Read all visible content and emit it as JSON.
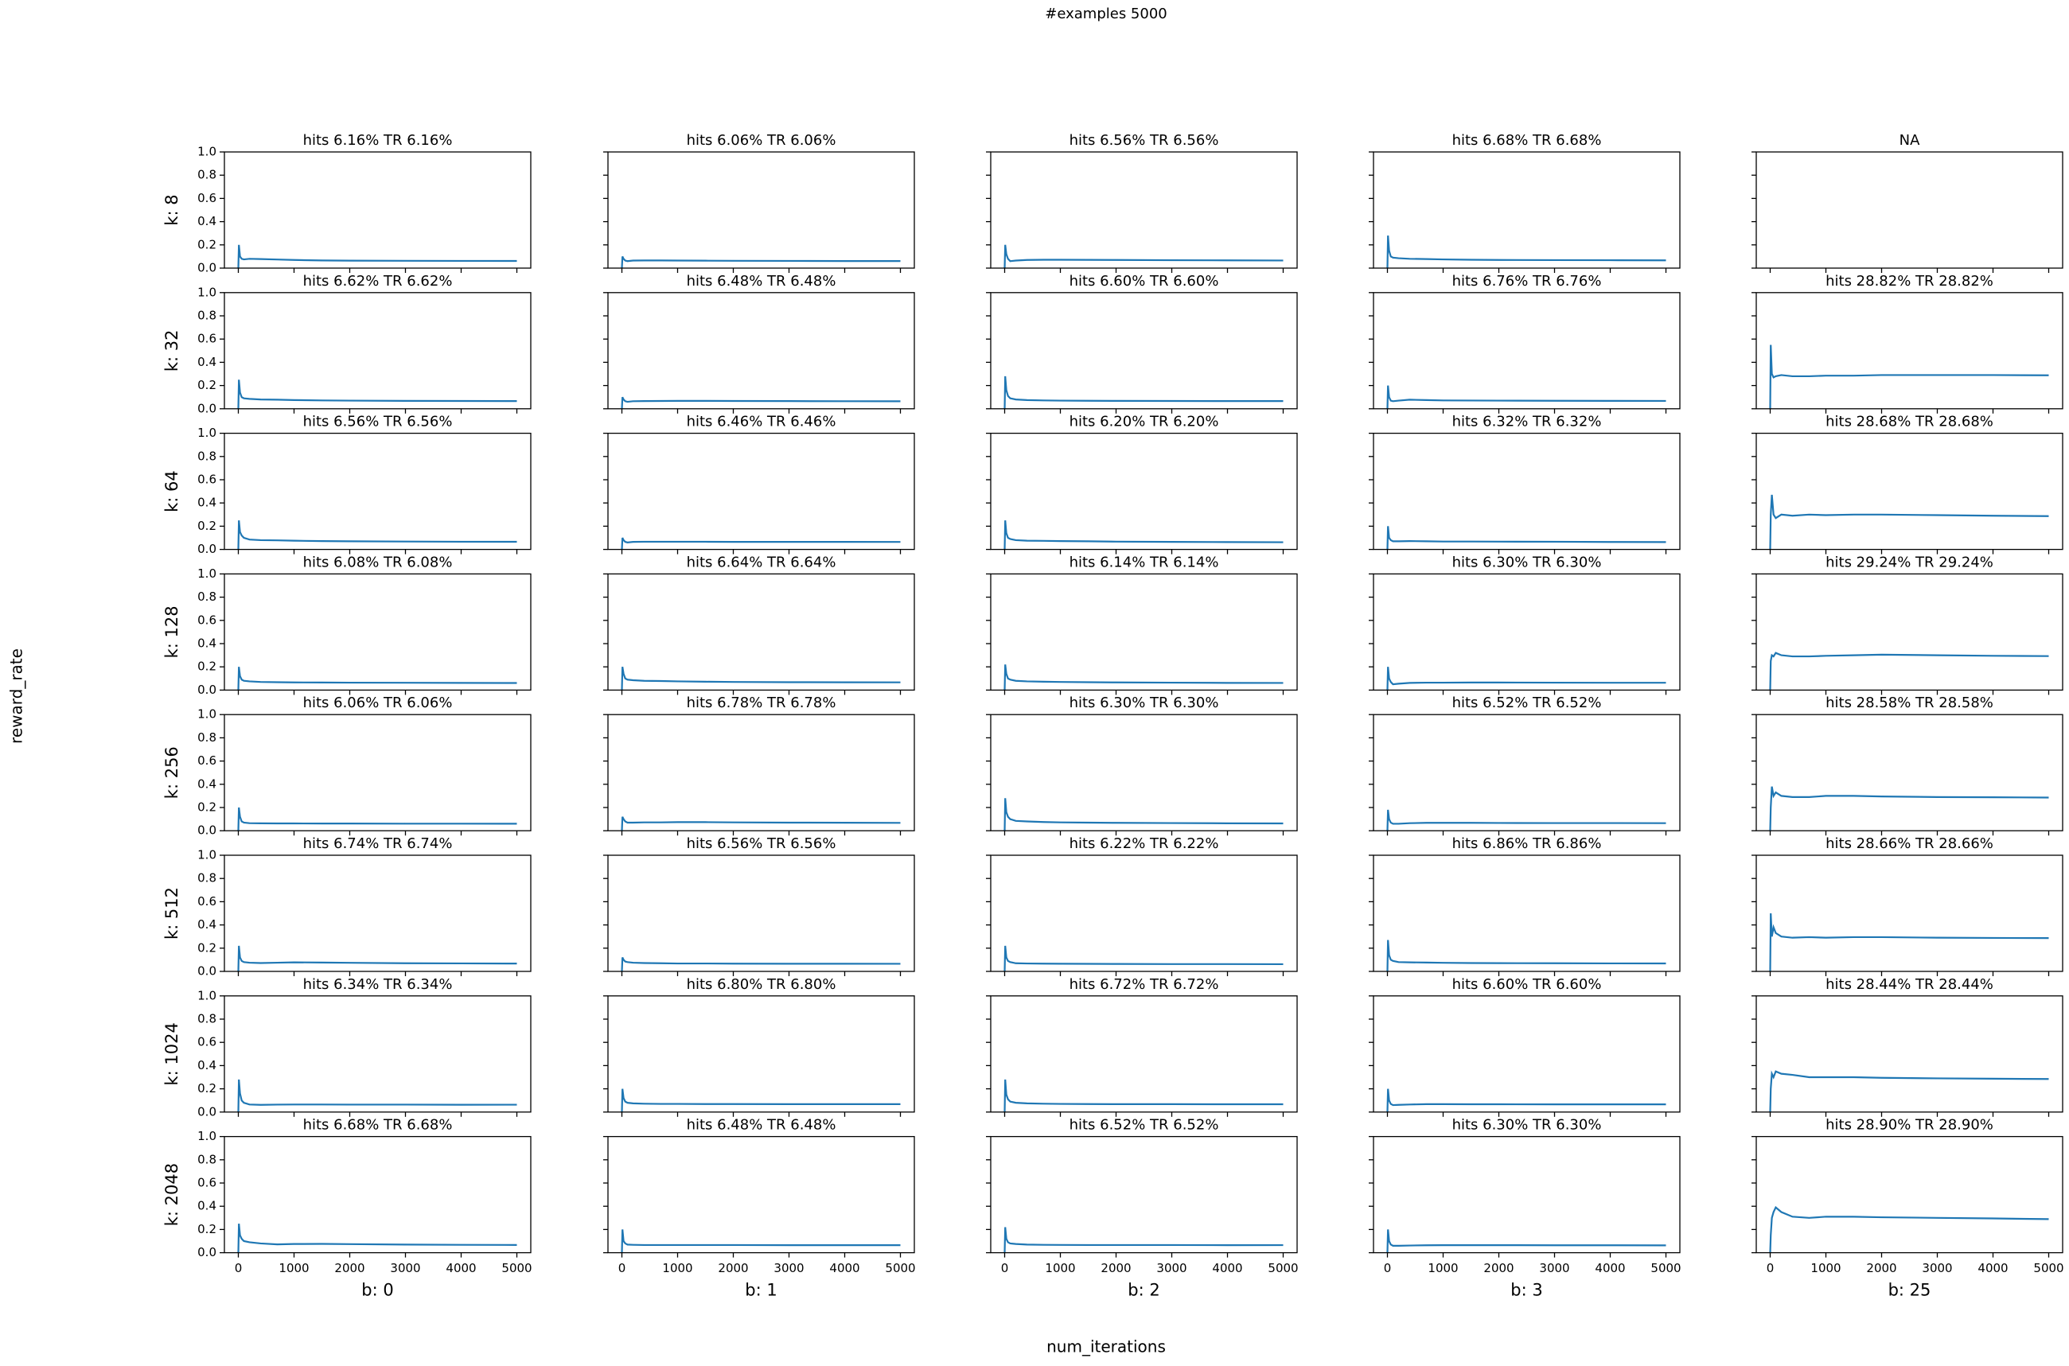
{
  "title": "#examples 5000",
  "ylabel": "reward_rate",
  "xlabel": "num_iterations",
  "color": "#1f77b4",
  "xlim": [
    -250,
    5250
  ],
  "xticks": [
    0,
    1000,
    2000,
    3000,
    4000,
    5000
  ],
  "ylim": [
    0,
    1
  ],
  "yticks": [
    {
      "value": 0,
      "label": "0.0"
    },
    {
      "value": 0.2,
      "label": "0.2"
    },
    {
      "value": 0.4,
      "label": "0.4"
    },
    {
      "value": 0.6,
      "label": "0.6"
    },
    {
      "value": 0.8,
      "label": "0.8"
    },
    {
      "value": 1,
      "label": "1.0"
    }
  ],
  "x": [
    0,
    10,
    30,
    60,
    100,
    200,
    400,
    700,
    1000,
    1500,
    2000,
    3000,
    4000,
    5000
  ],
  "chart_data": [
    {
      "type": "line",
      "title": "hits 6.16% TR 6.16%",
      "ylabel": "k: 8",
      "values": [
        0,
        0.2,
        0.1,
        0.08,
        0.075,
        0.08,
        0.078,
        0.074,
        0.07,
        0.066,
        0.064,
        0.063,
        0.062,
        0.0616
      ]
    },
    {
      "type": "line",
      "title": "hits 6.06% TR 6.06%",
      "values": [
        0,
        0.1,
        0.08,
        0.065,
        0.06,
        0.065,
        0.066,
        0.066,
        0.065,
        0.064,
        0.063,
        0.062,
        0.061,
        0.0606
      ]
    },
    {
      "type": "line",
      "title": "hits 6.56% TR 6.56%",
      "values": [
        0,
        0.2,
        0.12,
        0.08,
        0.06,
        0.065,
        0.07,
        0.072,
        0.072,
        0.071,
        0.07,
        0.068,
        0.067,
        0.0656
      ]
    },
    {
      "type": "line",
      "title": "hits 6.68% TR 6.68%",
      "values": [
        0,
        0.28,
        0.15,
        0.1,
        0.09,
        0.085,
        0.08,
        0.078,
        0.075,
        0.072,
        0.07,
        0.069,
        0.068,
        0.0668
      ]
    },
    {
      "type": "line",
      "title": "NA"
    },
    {
      "type": "line",
      "title": "hits 6.62% TR 6.62%",
      "ylabel": "k: 32",
      "values": [
        0,
        0.25,
        0.14,
        0.1,
        0.09,
        0.085,
        0.08,
        0.078,
        0.075,
        0.072,
        0.07,
        0.068,
        0.067,
        0.0662
      ]
    },
    {
      "type": "line",
      "title": "hits 6.48% TR 6.48%",
      "values": [
        0,
        0.1,
        0.08,
        0.065,
        0.06,
        0.065,
        0.066,
        0.067,
        0.068,
        0.068,
        0.067,
        0.066,
        0.065,
        0.0648
      ]
    },
    {
      "type": "line",
      "title": "hits 6.60% TR 6.60%",
      "values": [
        0,
        0.28,
        0.16,
        0.11,
        0.09,
        0.08,
        0.075,
        0.072,
        0.07,
        0.069,
        0.068,
        0.067,
        0.066,
        0.066
      ]
    },
    {
      "type": "line",
      "title": "hits 6.76% TR 6.76%",
      "values": [
        0,
        0.2,
        0.1,
        0.07,
        0.065,
        0.07,
        0.078,
        0.075,
        0.072,
        0.071,
        0.07,
        0.069,
        0.068,
        0.0676
      ]
    },
    {
      "type": "line",
      "title": "hits 28.82% TR 28.82%",
      "values": [
        0,
        0.55,
        0.3,
        0.27,
        0.28,
        0.29,
        0.28,
        0.28,
        0.285,
        0.285,
        0.29,
        0.29,
        0.29,
        0.2882
      ]
    },
    {
      "type": "line",
      "title": "hits 6.56% TR 6.56%",
      "ylabel": "k: 64",
      "values": [
        0,
        0.25,
        0.15,
        0.12,
        0.1,
        0.085,
        0.08,
        0.078,
        0.075,
        0.072,
        0.07,
        0.068,
        0.066,
        0.0656
      ]
    },
    {
      "type": "line",
      "title": "hits 6.46% TR 6.46%",
      "values": [
        0,
        0.1,
        0.08,
        0.065,
        0.06,
        0.065,
        0.066,
        0.066,
        0.066,
        0.066,
        0.065,
        0.065,
        0.065,
        0.0646
      ]
    },
    {
      "type": "line",
      "title": "hits 6.20% TR 6.20%",
      "values": [
        0,
        0.25,
        0.14,
        0.1,
        0.09,
        0.08,
        0.075,
        0.074,
        0.072,
        0.07,
        0.067,
        0.065,
        0.063,
        0.062
      ]
    },
    {
      "type": "line",
      "title": "hits 6.32% TR 6.32%",
      "values": [
        0,
        0.2,
        0.1,
        0.08,
        0.07,
        0.07,
        0.072,
        0.07,
        0.068,
        0.068,
        0.067,
        0.066,
        0.064,
        0.0632
      ]
    },
    {
      "type": "line",
      "title": "hits 28.68% TR 28.68%",
      "values": [
        0,
        0.3,
        0.47,
        0.3,
        0.27,
        0.3,
        0.29,
        0.3,
        0.295,
        0.3,
        0.3,
        0.295,
        0.29,
        0.2868
      ]
    },
    {
      "type": "line",
      "title": "hits 6.08% TR 6.08%",
      "ylabel": "k: 128",
      "values": [
        0,
        0.2,
        0.12,
        0.09,
        0.08,
        0.075,
        0.07,
        0.068,
        0.066,
        0.065,
        0.064,
        0.063,
        0.062,
        0.0608
      ]
    },
    {
      "type": "line",
      "title": "hits 6.64% TR 6.64%",
      "values": [
        0,
        0.2,
        0.14,
        0.1,
        0.09,
        0.085,
        0.08,
        0.078,
        0.075,
        0.072,
        0.07,
        0.068,
        0.067,
        0.0664
      ]
    },
    {
      "type": "line",
      "title": "hits 6.14% TR 6.14%",
      "values": [
        0,
        0.22,
        0.14,
        0.1,
        0.09,
        0.08,
        0.075,
        0.072,
        0.07,
        0.068,
        0.066,
        0.064,
        0.062,
        0.0614
      ]
    },
    {
      "type": "line",
      "title": "hits 6.30% TR 6.30%",
      "values": [
        0,
        0.2,
        0.1,
        0.07,
        0.05,
        0.055,
        0.062,
        0.064,
        0.064,
        0.065,
        0.065,
        0.064,
        0.063,
        0.063
      ]
    },
    {
      "type": "line",
      "title": "hits 29.24% TR 29.24%",
      "values": [
        0,
        0.25,
        0.3,
        0.29,
        0.32,
        0.3,
        0.29,
        0.29,
        0.295,
        0.3,
        0.305,
        0.3,
        0.295,
        0.2924
      ]
    },
    {
      "type": "line",
      "title": "hits 6.06% TR 6.06%",
      "ylabel": "k: 256",
      "values": [
        0,
        0.2,
        0.12,
        0.08,
        0.07,
        0.065,
        0.064,
        0.063,
        0.063,
        0.062,
        0.062,
        0.061,
        0.061,
        0.0606
      ]
    },
    {
      "type": "line",
      "title": "hits 6.78% TR 6.78%",
      "values": [
        0,
        0.12,
        0.1,
        0.08,
        0.07,
        0.07,
        0.072,
        0.072,
        0.074,
        0.074,
        0.072,
        0.07,
        0.069,
        0.0678
      ]
    },
    {
      "type": "line",
      "title": "hits 6.30% TR 6.30%",
      "values": [
        0,
        0.28,
        0.16,
        0.12,
        0.1,
        0.085,
        0.08,
        0.075,
        0.072,
        0.07,
        0.068,
        0.066,
        0.064,
        0.063
      ]
    },
    {
      "type": "line",
      "title": "hits 6.52% TR 6.52%",
      "values": [
        0,
        0.18,
        0.1,
        0.07,
        0.06,
        0.06,
        0.065,
        0.068,
        0.068,
        0.068,
        0.067,
        0.066,
        0.066,
        0.0652
      ]
    },
    {
      "type": "line",
      "title": "hits 28.58% TR 28.58%",
      "values": [
        0,
        0.2,
        0.38,
        0.3,
        0.33,
        0.3,
        0.29,
        0.29,
        0.3,
        0.3,
        0.295,
        0.29,
        0.288,
        0.2858
      ]
    },
    {
      "type": "line",
      "title": "hits 6.74% TR 6.74%",
      "ylabel": "k: 512",
      "values": [
        0,
        0.22,
        0.12,
        0.09,
        0.08,
        0.075,
        0.072,
        0.075,
        0.078,
        0.076,
        0.074,
        0.07,
        0.069,
        0.0674
      ]
    },
    {
      "type": "line",
      "title": "hits 6.56% TR 6.56%",
      "values": [
        0,
        0.12,
        0.1,
        0.085,
        0.08,
        0.075,
        0.072,
        0.07,
        0.068,
        0.068,
        0.067,
        0.066,
        0.066,
        0.0656
      ]
    },
    {
      "type": "line",
      "title": "hits 6.22% TR 6.22%",
      "values": [
        0,
        0.22,
        0.12,
        0.09,
        0.08,
        0.07,
        0.068,
        0.067,
        0.066,
        0.065,
        0.064,
        0.063,
        0.063,
        0.0622
      ]
    },
    {
      "type": "line",
      "title": "hits 6.86% TR 6.86%",
      "values": [
        0,
        0.27,
        0.14,
        0.1,
        0.09,
        0.08,
        0.078,
        0.076,
        0.074,
        0.072,
        0.071,
        0.07,
        0.069,
        0.0686
      ]
    },
    {
      "type": "line",
      "title": "hits 28.66% TR 28.66%",
      "values": [
        0,
        0.5,
        0.3,
        0.38,
        0.33,
        0.3,
        0.29,
        0.295,
        0.29,
        0.295,
        0.295,
        0.29,
        0.288,
        0.2866
      ]
    },
    {
      "type": "line",
      "title": "hits 6.34% TR 6.34%",
      "ylabel": "k: 1024",
      "values": [
        0,
        0.28,
        0.16,
        0.1,
        0.08,
        0.065,
        0.062,
        0.064,
        0.065,
        0.065,
        0.064,
        0.064,
        0.063,
        0.0634
      ]
    },
    {
      "type": "line",
      "title": "hits 6.80% TR 6.80%",
      "values": [
        0,
        0.2,
        0.12,
        0.09,
        0.08,
        0.075,
        0.072,
        0.07,
        0.07,
        0.069,
        0.069,
        0.068,
        0.068,
        0.068
      ]
    },
    {
      "type": "line",
      "title": "hits 6.72% TR 6.72%",
      "values": [
        0,
        0.28,
        0.15,
        0.11,
        0.09,
        0.08,
        0.075,
        0.072,
        0.07,
        0.069,
        0.068,
        0.068,
        0.067,
        0.0672
      ]
    },
    {
      "type": "line",
      "title": "hits 6.60% TR 6.60%",
      "values": [
        0,
        0.2,
        0.1,
        0.07,
        0.06,
        0.062,
        0.065,
        0.068,
        0.068,
        0.067,
        0.067,
        0.066,
        0.066,
        0.066
      ]
    },
    {
      "type": "line",
      "title": "hits 28.44% TR 28.44%",
      "values": [
        0,
        0.2,
        0.33,
        0.3,
        0.35,
        0.33,
        0.32,
        0.3,
        0.3,
        0.3,
        0.295,
        0.29,
        0.287,
        0.2844
      ]
    },
    {
      "type": "line",
      "title": "hits 6.68% TR 6.68%",
      "ylabel": "k: 2048",
      "xlabel": "b: 0",
      "values": [
        0,
        0.25,
        0.15,
        0.12,
        0.1,
        0.09,
        0.08,
        0.072,
        0.075,
        0.076,
        0.074,
        0.07,
        0.068,
        0.0668
      ]
    },
    {
      "type": "line",
      "title": "hits 6.48% TR 6.48%",
      "xlabel": "b: 1",
      "values": [
        0,
        0.2,
        0.1,
        0.08,
        0.07,
        0.068,
        0.066,
        0.066,
        0.066,
        0.066,
        0.066,
        0.065,
        0.065,
        0.0648
      ]
    },
    {
      "type": "line",
      "title": "hits 6.52% TR 6.52%",
      "xlabel": "b: 2",
      "values": [
        0,
        0.22,
        0.12,
        0.09,
        0.08,
        0.075,
        0.07,
        0.068,
        0.067,
        0.066,
        0.066,
        0.066,
        0.065,
        0.0652
      ]
    },
    {
      "type": "line",
      "title": "hits 6.30% TR 6.30%",
      "xlabel": "b: 3",
      "values": [
        0,
        0.2,
        0.1,
        0.07,
        0.06,
        0.06,
        0.062,
        0.064,
        0.065,
        0.065,
        0.065,
        0.064,
        0.064,
        0.063
      ]
    },
    {
      "type": "line",
      "title": "hits 28.90% TR 28.90%",
      "xlabel": "b: 25",
      "values": [
        0,
        0.15,
        0.3,
        0.35,
        0.39,
        0.35,
        0.31,
        0.3,
        0.31,
        0.31,
        0.305,
        0.3,
        0.295,
        0.289
      ]
    }
  ]
}
